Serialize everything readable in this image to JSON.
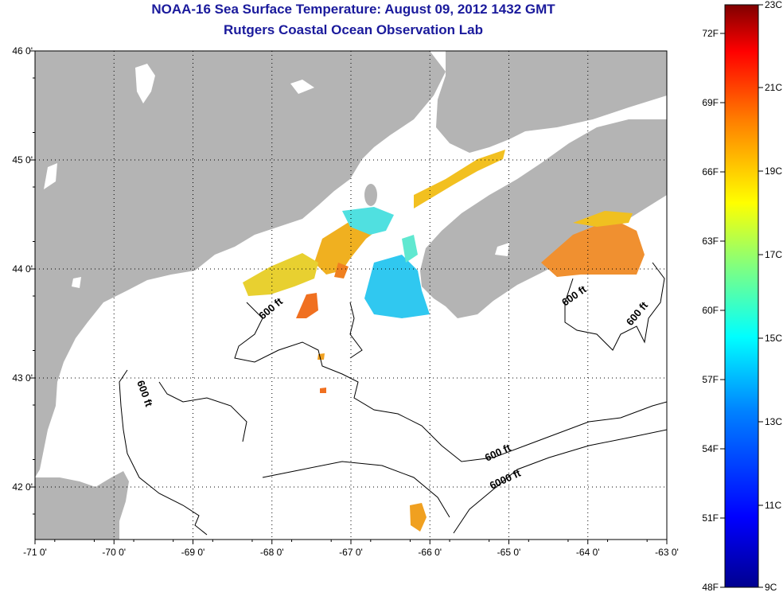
{
  "header": {
    "title": "NOAA-16 Sea Surface Temperature:  August 09, 2012 1432 GMT",
    "subtitle": "Rutgers Coastal Ocean Observation Lab"
  },
  "map": {
    "lon_ticks": [
      "-71 0'",
      "-70 0'",
      "-69 0'",
      "-68 0'",
      "-67 0'",
      "-66 0'",
      "-65 0'",
      "-64 0'",
      "-63 0'"
    ],
    "lat_ticks": [
      "46 0'",
      "45 0'",
      "44 0'",
      "43 0'",
      "42 0'"
    ],
    "isobath_labels": [
      "600 ft",
      "600 ft",
      "600 ft",
      "600 ft",
      "600 ft",
      "6000 ft"
    ],
    "colors": {
      "land": "#b4b4b4",
      "ocean": "#ffffff",
      "grid": "#000000"
    }
  },
  "legend": {
    "fahrenheit": [
      "72F",
      "69F",
      "66F",
      "63F",
      "60F",
      "57F",
      "54F",
      "51F",
      "48F"
    ],
    "celsius": [
      "23C",
      "21C",
      "19C",
      "17C",
      "15C",
      "13C",
      "11C",
      "9C"
    ],
    "colormap": [
      "#00008f",
      "#0000ff",
      "#0080ff",
      "#00ffff",
      "#80ff80",
      "#ffff00",
      "#ff8000",
      "#ff0000",
      "#800000"
    ]
  }
}
